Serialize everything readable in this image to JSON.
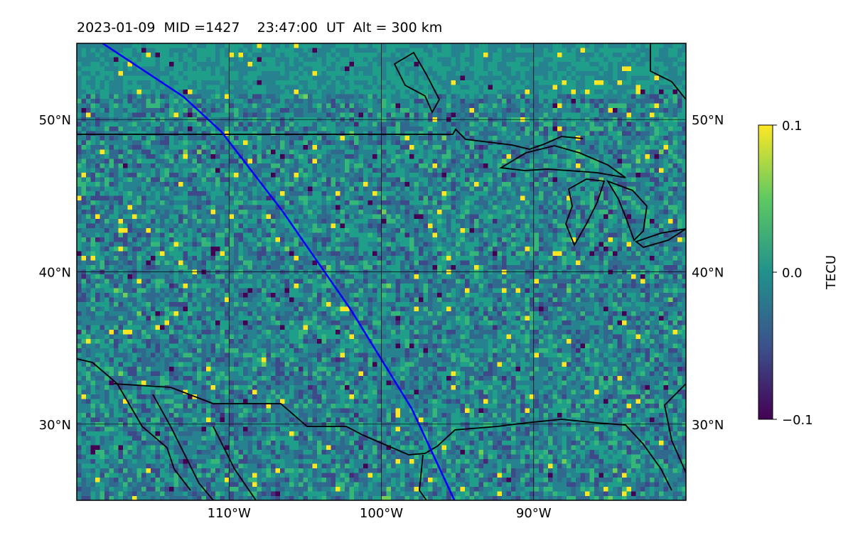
{
  "title": {
    "date": "2023-01-09",
    "mid": "MID =1427",
    "time": "23:47:00  UT",
    "alt": "Alt = 300 km"
  },
  "map": {
    "lat_range": [
      25,
      55
    ],
    "lon_range": [
      -120,
      -80
    ],
    "grid_lats": [
      30,
      40,
      50
    ],
    "grid_lons": [
      -110,
      -100,
      -90
    ],
    "lat_ticks_left": [
      "30°N",
      "40°N",
      "50°N"
    ],
    "lat_ticks_right": [
      "30°N",
      "40°N",
      "50°N"
    ],
    "lon_ticks": [
      "110°W",
      "100°W",
      "90°W"
    ],
    "field_colormap": "viridis",
    "field_description_colors": [
      "#440154",
      "#31688e",
      "#21918c",
      "#35b779",
      "#fde725"
    ],
    "satellite_track_color": "#0000ff",
    "satellite_track": [
      [
        -118.3,
        55
      ],
      [
        -113,
        51.5
      ],
      [
        -110.5,
        49.2
      ],
      [
        -106.5,
        44
      ],
      [
        -102,
        37.5
      ],
      [
        -98,
        31
      ],
      [
        -95.2,
        25
      ]
    ],
    "coastline_color": "#000000"
  },
  "colorbar": {
    "label": "TECU",
    "max_label": "0.1",
    "mid_label": "0.0",
    "min_label": "−0.1",
    "colors": [
      "#440154",
      "#3b528b",
      "#21918c",
      "#5ec962",
      "#fde725"
    ]
  }
}
